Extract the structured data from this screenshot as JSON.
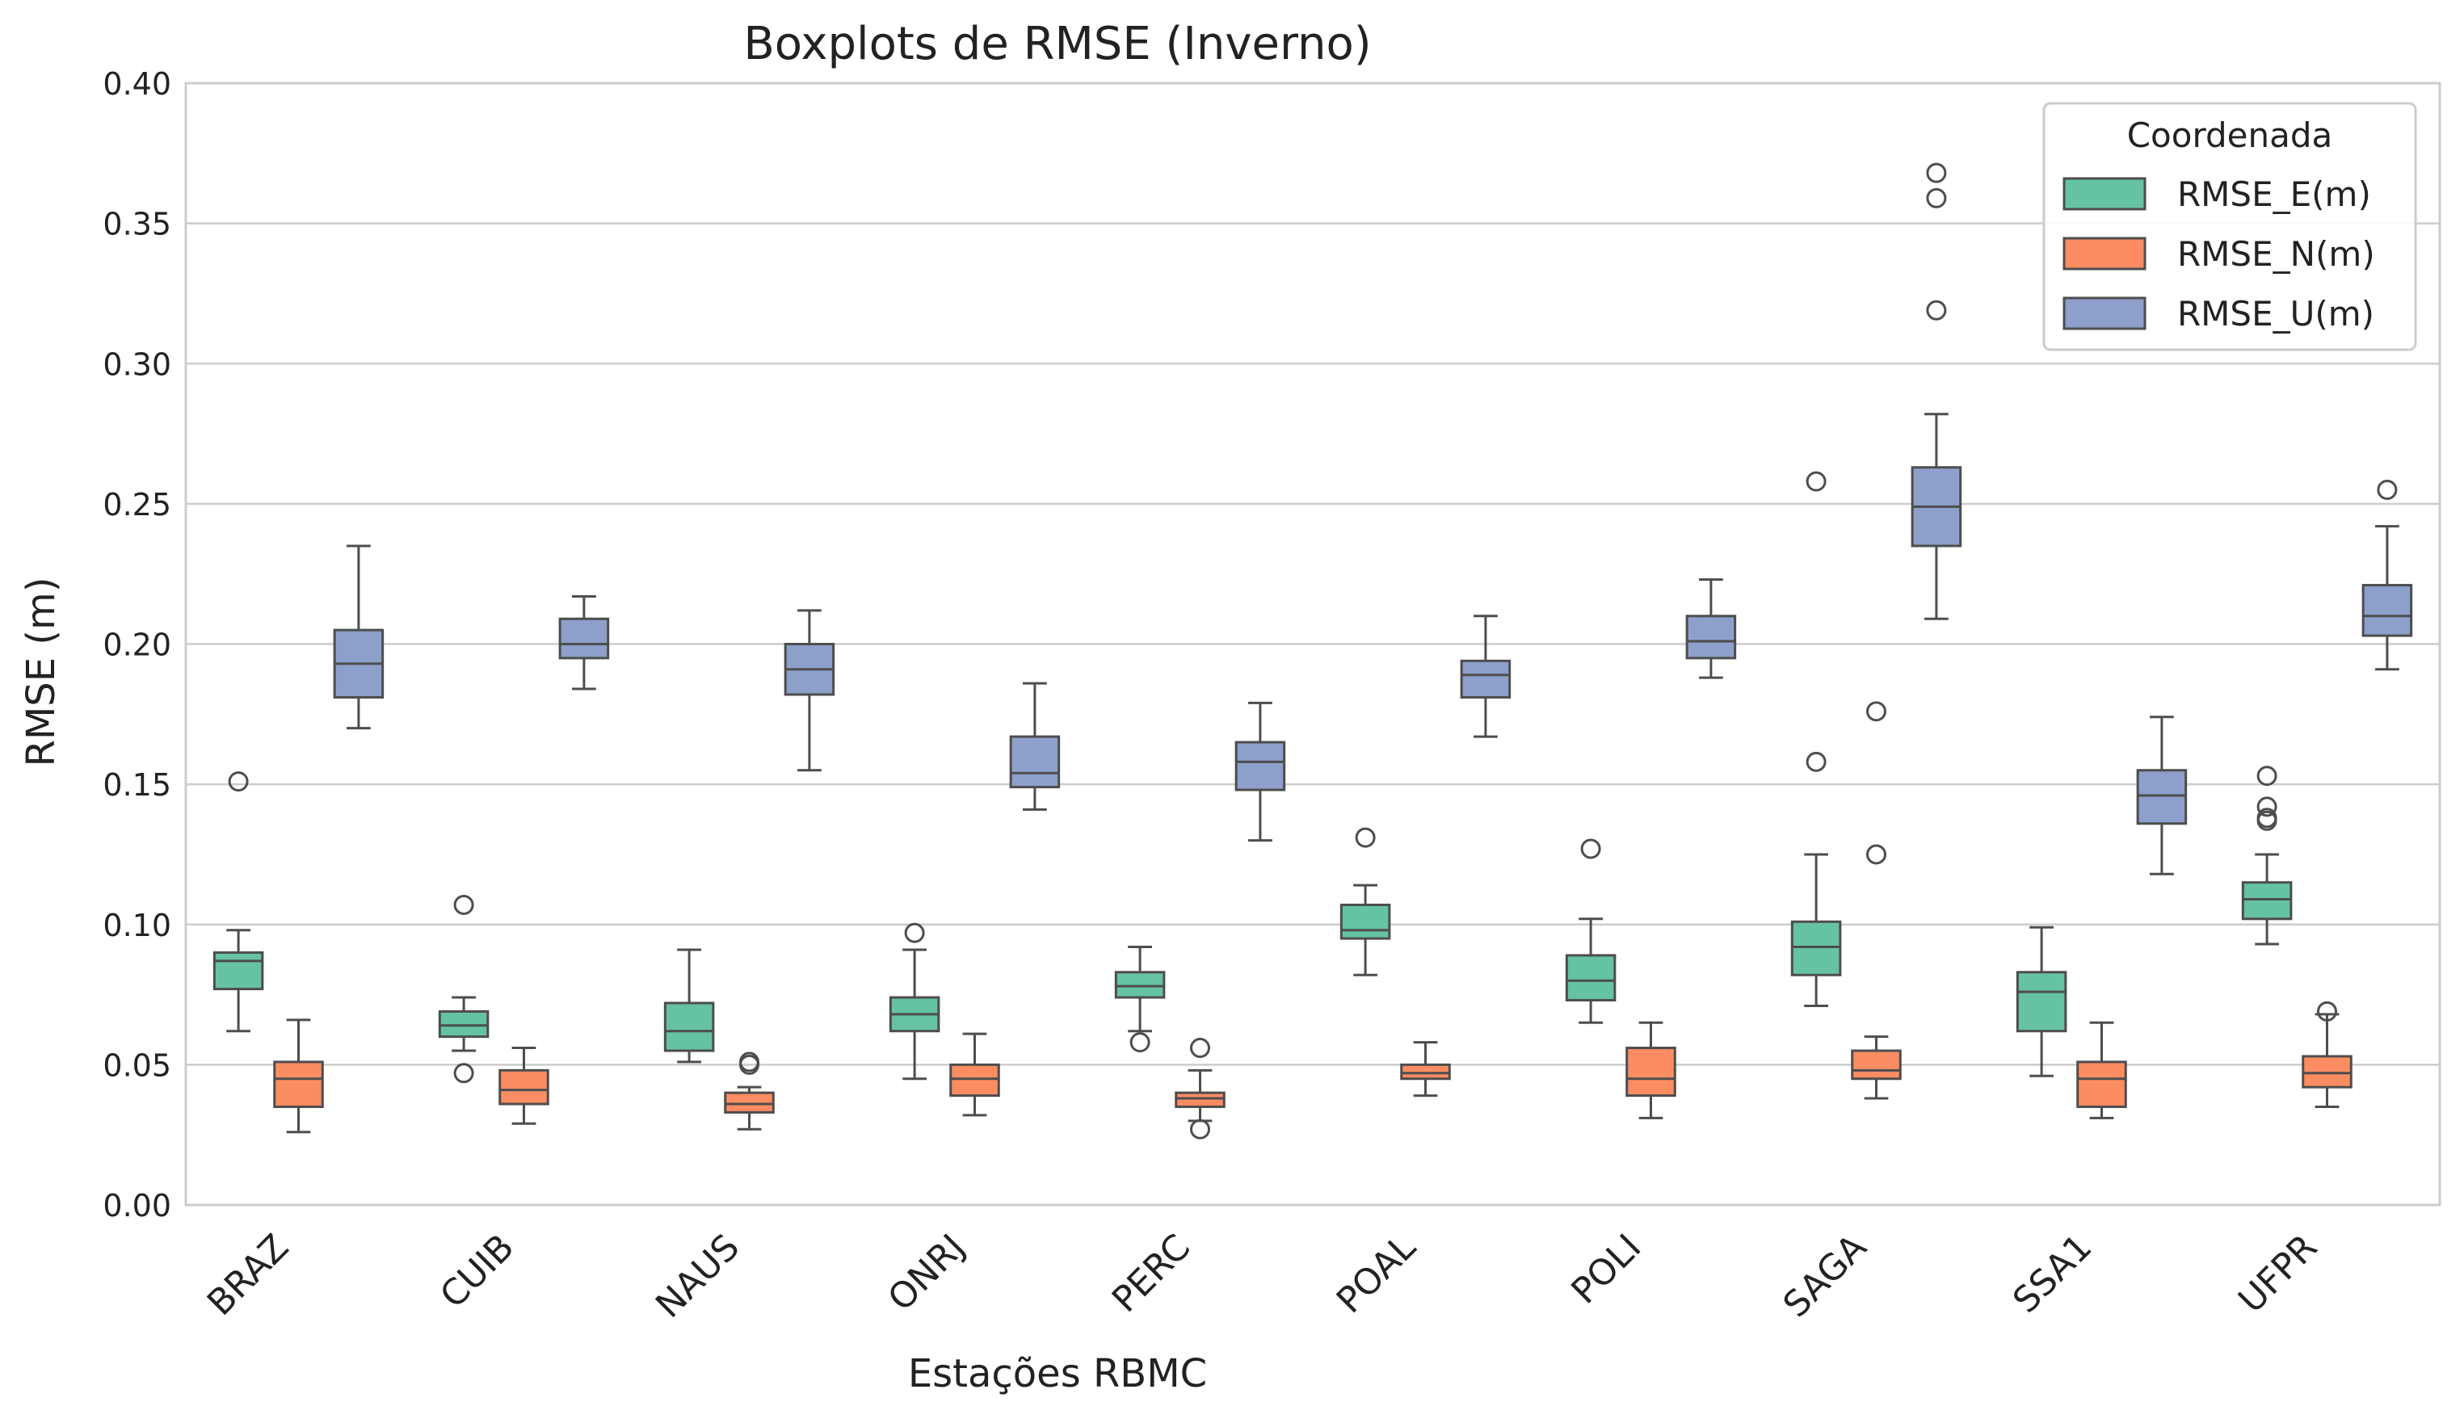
{
  "chart_data": {
    "type": "boxplot",
    "title": "Boxplots de RMSE (Inverno)",
    "xlabel": "Estações RBMC",
    "ylabel": "RMSE (m)",
    "ylim": [
      0,
      0.4
    ],
    "yticks": [
      "0.00",
      "0.05",
      "0.10",
      "0.15",
      "0.20",
      "0.25",
      "0.30",
      "0.35",
      "0.40"
    ],
    "grid": "horizontal",
    "legend_position": "top-right",
    "legend_title": "Coordenada",
    "categories": [
      "BRAZ",
      "CUIB",
      "NAUS",
      "ONRJ",
      "PERC",
      "POAL",
      "POLI",
      "SAGA",
      "SSA1",
      "UFPR"
    ],
    "series": [
      {
        "name": "RMSE_E(m)",
        "color": "#66c2a5",
        "boxes": [
          {
            "whislo": 0.062,
            "q1": 0.077,
            "med": 0.087,
            "q3": 0.09,
            "whishi": 0.098,
            "fliers": [
              0.151
            ]
          },
          {
            "whislo": 0.055,
            "q1": 0.06,
            "med": 0.064,
            "q3": 0.069,
            "whishi": 0.074,
            "fliers": [
              0.107,
              0.047
            ]
          },
          {
            "whislo": 0.051,
            "q1": 0.055,
            "med": 0.062,
            "q3": 0.072,
            "whishi": 0.091,
            "fliers": []
          },
          {
            "whislo": 0.045,
            "q1": 0.062,
            "med": 0.068,
            "q3": 0.074,
            "whishi": 0.091,
            "fliers": [
              0.097
            ]
          },
          {
            "whislo": 0.062,
            "q1": 0.074,
            "med": 0.078,
            "q3": 0.083,
            "whishi": 0.092,
            "fliers": [
              0.058
            ]
          },
          {
            "whislo": 0.082,
            "q1": 0.095,
            "med": 0.098,
            "q3": 0.107,
            "whishi": 0.114,
            "fliers": [
              0.131
            ]
          },
          {
            "whislo": 0.065,
            "q1": 0.073,
            "med": 0.08,
            "q3": 0.089,
            "whishi": 0.102,
            "fliers": [
              0.127
            ]
          },
          {
            "whislo": 0.071,
            "q1": 0.082,
            "med": 0.092,
            "q3": 0.101,
            "whishi": 0.125,
            "fliers": [
              0.158,
              0.258
            ]
          },
          {
            "whislo": 0.046,
            "q1": 0.062,
            "med": 0.076,
            "q3": 0.083,
            "whishi": 0.099,
            "fliers": []
          },
          {
            "whislo": 0.093,
            "q1": 0.102,
            "med": 0.109,
            "q3": 0.115,
            "whishi": 0.125,
            "fliers": [
              0.137,
              0.138,
              0.142,
              0.153
            ]
          }
        ]
      },
      {
        "name": "RMSE_N(m)",
        "color": "#fc8d62",
        "boxes": [
          {
            "whislo": 0.026,
            "q1": 0.035,
            "med": 0.045,
            "q3": 0.051,
            "whishi": 0.066,
            "fliers": []
          },
          {
            "whislo": 0.029,
            "q1": 0.036,
            "med": 0.041,
            "q3": 0.048,
            "whishi": 0.056,
            "fliers": []
          },
          {
            "whislo": 0.027,
            "q1": 0.033,
            "med": 0.036,
            "q3": 0.04,
            "whishi": 0.042,
            "fliers": [
              0.05,
              0.051
            ]
          },
          {
            "whislo": 0.032,
            "q1": 0.039,
            "med": 0.045,
            "q3": 0.05,
            "whishi": 0.061,
            "fliers": []
          },
          {
            "whislo": 0.03,
            "q1": 0.035,
            "med": 0.038,
            "q3": 0.04,
            "whishi": 0.048,
            "fliers": [
              0.056,
              0.027
            ]
          },
          {
            "whislo": 0.039,
            "q1": 0.045,
            "med": 0.047,
            "q3": 0.05,
            "whishi": 0.058,
            "fliers": []
          },
          {
            "whislo": 0.031,
            "q1": 0.039,
            "med": 0.045,
            "q3": 0.056,
            "whishi": 0.065,
            "fliers": []
          },
          {
            "whislo": 0.038,
            "q1": 0.045,
            "med": 0.048,
            "q3": 0.055,
            "whishi": 0.06,
            "fliers": [
              0.125,
              0.176
            ]
          },
          {
            "whislo": 0.031,
            "q1": 0.035,
            "med": 0.045,
            "q3": 0.051,
            "whishi": 0.065,
            "fliers": []
          },
          {
            "whislo": 0.035,
            "q1": 0.042,
            "med": 0.047,
            "q3": 0.053,
            "whishi": 0.068,
            "fliers": [
              0.069
            ]
          }
        ]
      },
      {
        "name": "RMSE_U(m)",
        "color": "#8da0cb",
        "boxes": [
          {
            "whislo": 0.17,
            "q1": 0.181,
            "med": 0.193,
            "q3": 0.205,
            "whishi": 0.235,
            "fliers": []
          },
          {
            "whislo": 0.184,
            "q1": 0.195,
            "med": 0.2,
            "q3": 0.209,
            "whishi": 0.217,
            "fliers": []
          },
          {
            "whislo": 0.155,
            "q1": 0.182,
            "med": 0.191,
            "q3": 0.2,
            "whishi": 0.212,
            "fliers": []
          },
          {
            "whislo": 0.141,
            "q1": 0.149,
            "med": 0.154,
            "q3": 0.167,
            "whishi": 0.186,
            "fliers": []
          },
          {
            "whislo": 0.13,
            "q1": 0.148,
            "med": 0.158,
            "q3": 0.165,
            "whishi": 0.179,
            "fliers": []
          },
          {
            "whislo": 0.167,
            "q1": 0.181,
            "med": 0.189,
            "q3": 0.194,
            "whishi": 0.21,
            "fliers": []
          },
          {
            "whislo": 0.188,
            "q1": 0.195,
            "med": 0.201,
            "q3": 0.21,
            "whishi": 0.223,
            "fliers": []
          },
          {
            "whislo": 0.209,
            "q1": 0.235,
            "med": 0.249,
            "q3": 0.263,
            "whishi": 0.282,
            "fliers": [
              0.319,
              0.359,
              0.368
            ]
          },
          {
            "whislo": 0.118,
            "q1": 0.136,
            "med": 0.146,
            "q3": 0.155,
            "whishi": 0.174,
            "fliers": []
          },
          {
            "whislo": 0.191,
            "q1": 0.203,
            "med": 0.21,
            "q3": 0.221,
            "whishi": 0.242,
            "fliers": [
              0.255
            ]
          }
        ]
      }
    ]
  }
}
